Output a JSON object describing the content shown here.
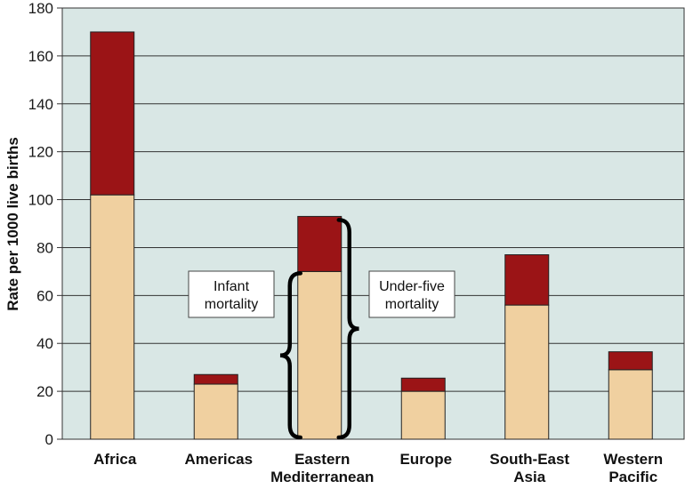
{
  "chart_data": {
    "type": "bar",
    "stacked": true,
    "categories": [
      [
        "Africa"
      ],
      [
        "Americas"
      ],
      [
        "Eastern",
        "Mediterranean"
      ],
      [
        "Europe"
      ],
      [
        "South-East",
        "Asia"
      ],
      [
        "Western",
        "Pacific"
      ]
    ],
    "series": [
      {
        "values": [
          102,
          23,
          70,
          20,
          56,
          29
        ],
        "color": "#f0d0a0"
      },
      {
        "values": [
          68,
          4,
          23,
          5.5,
          21,
          7.5
        ],
        "color": "#9b1416"
      }
    ],
    "ylabel": "Rate per 1000 live births",
    "ylim": [
      0,
      180
    ],
    "yticks": [
      0,
      20,
      40,
      60,
      80,
      100,
      120,
      140,
      160,
      180
    ],
    "grid": true,
    "plot_background": "#d9e7e5",
    "annotations": [
      {
        "lines": [
          "Infant",
          "mortality"
        ],
        "category": 2,
        "measure": "infant"
      },
      {
        "lines": [
          "Under-five",
          "mortality"
        ],
        "category": 2,
        "measure": "under-five"
      }
    ]
  }
}
